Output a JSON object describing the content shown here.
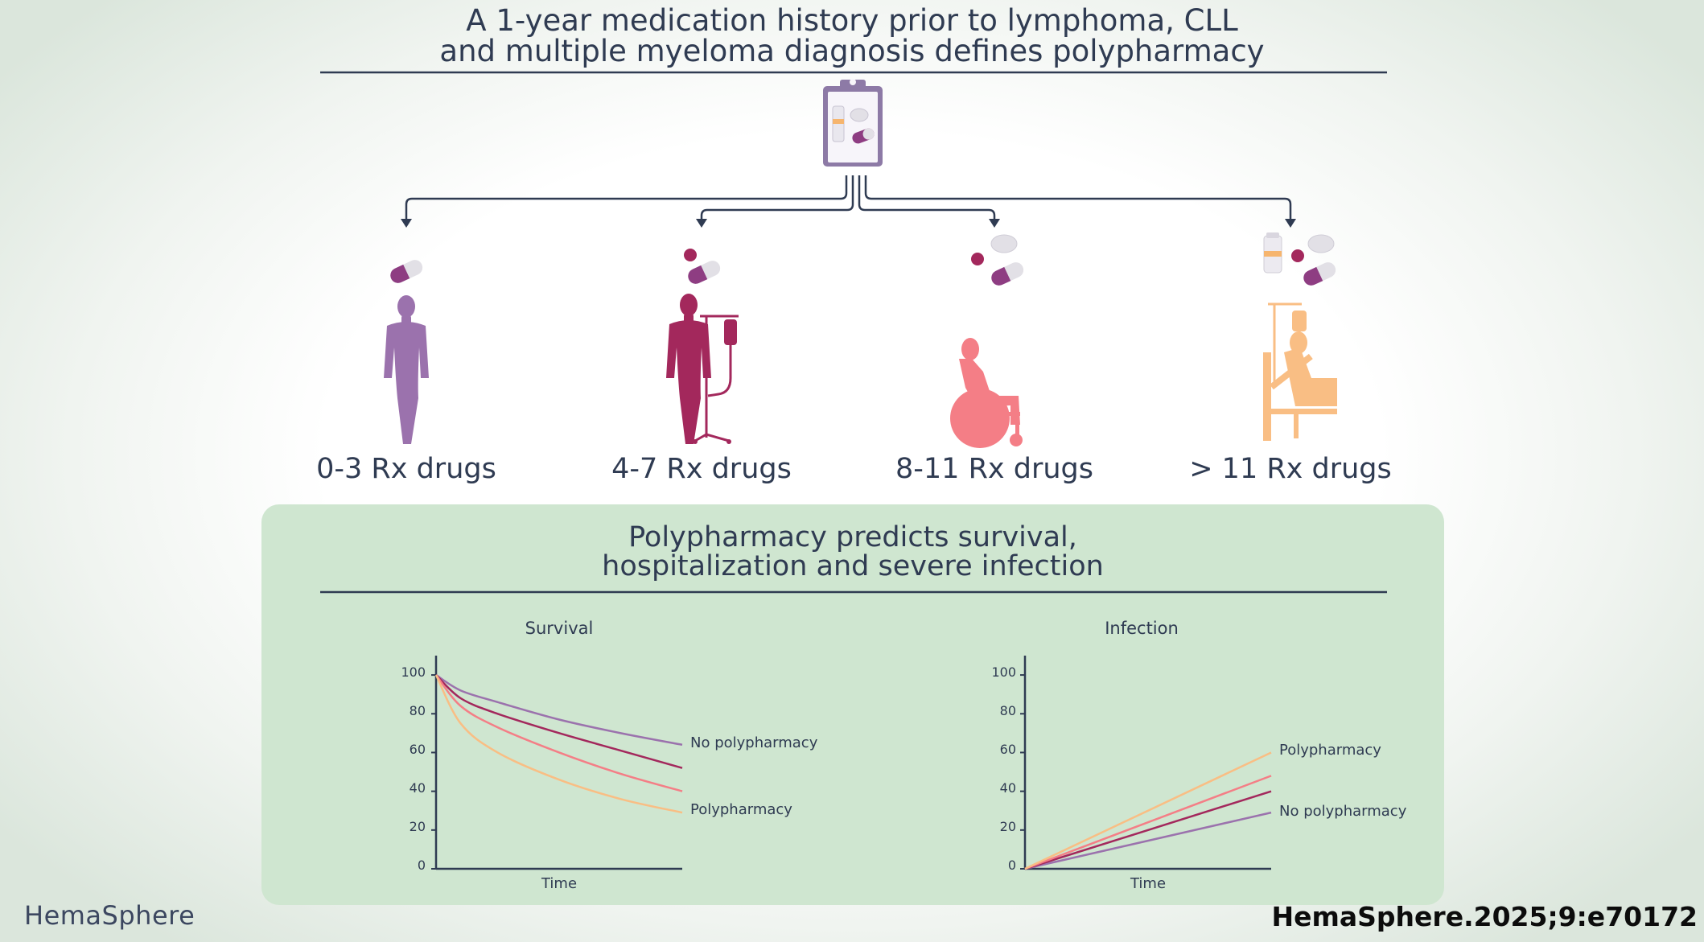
{
  "header": {
    "title_line1": "A 1-year medication history prior to lymphoma, CLL",
    "title_line2": "and multiple myeloma diagnosis defines polypharmacy"
  },
  "groups": [
    {
      "label": "0-3 Rx drugs",
      "figure": "standing-person-icon",
      "color": "#9b72ad"
    },
    {
      "label": "4-7 Rx drugs",
      "figure": "person-with-iv-drip-icon",
      "color": "#a3285c"
    },
    {
      "label": "8-11 Rx drugs",
      "figure": "person-in-wheelchair-icon",
      "color": "#f47e86"
    },
    {
      "label": "> 11 Rx drugs",
      "figure": "person-in-hospital-bed-icon",
      "color": "#f9be84"
    }
  ],
  "panel": {
    "title_line1": "Polypharmacy predicts survival,",
    "title_line2": "hospitalization and severe infection",
    "background": "#cfe6d0"
  },
  "charts": {
    "survival": {
      "title": "Survival",
      "xlabel": "Time",
      "yticks": [
        "0",
        "20",
        "40",
        "60",
        "80",
        "100"
      ],
      "label_top": "No polypharmacy",
      "label_bottom": "Polypharmacy"
    },
    "infection": {
      "title": "Infection",
      "xlabel": "Time",
      "yticks": [
        "0",
        "20",
        "40",
        "60",
        "80",
        "100"
      ],
      "label_top": "Polypharmacy",
      "label_bottom": "No polypharmacy"
    }
  },
  "chart_data": [
    {
      "type": "line",
      "title": "Survival",
      "xlabel": "Time",
      "ylabel": "",
      "ylim": [
        0,
        110
      ],
      "yticks": [
        0,
        20,
        40,
        60,
        80,
        100
      ],
      "x": [
        0,
        0.1,
        0.25,
        0.5,
        0.75,
        1
      ],
      "series": [
        {
          "values": [
            100,
            92,
            86,
            77,
            70,
            64
          ],
          "color": "#9b72ad"
        },
        {
          "values": [
            100,
            88,
            80,
            70,
            61,
            52
          ],
          "color": "#a3285c"
        },
        {
          "values": [
            100,
            84,
            73,
            60,
            49,
            40
          ],
          "color": "#f47e86"
        },
        {
          "values": [
            100,
            75,
            60,
            46,
            36,
            29
          ],
          "color": "#f9be84"
        }
      ]
    },
    {
      "type": "line",
      "title": "Infection",
      "xlabel": "Time",
      "ylabel": "",
      "ylim": [
        0,
        110
      ],
      "yticks": [
        0,
        20,
        40,
        60,
        80,
        100
      ],
      "x": [
        0,
        1
      ],
      "series": [
        {
          "values": [
            0,
            29
          ],
          "color": "#9b72ad"
        },
        {
          "values": [
            0,
            40
          ],
          "color": "#a3285c"
        },
        {
          "values": [
            0,
            48
          ],
          "color": "#f47e86"
        },
        {
          "values": [
            0,
            60
          ],
          "color": "#f9be84"
        }
      ]
    }
  ],
  "footer": {
    "brand": "HemaSphere",
    "citation": "HemaSphere.2025;9:e70172"
  }
}
